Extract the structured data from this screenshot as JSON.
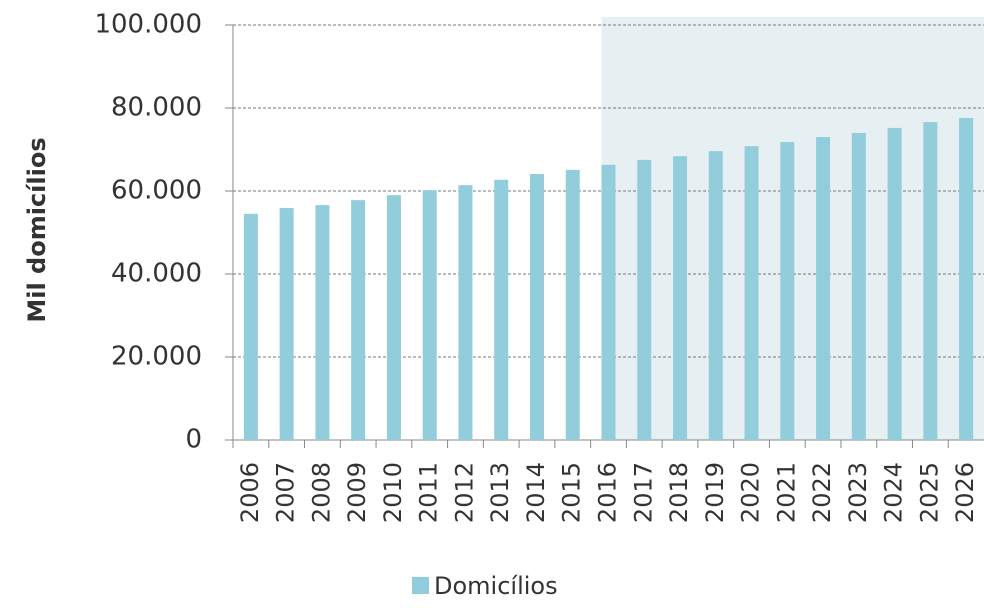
{
  "chart_data": {
    "type": "bar",
    "y_label": "Mil domicílios",
    "categories": [
      "2006",
      "2007",
      "2008",
      "2009",
      "2010",
      "2011",
      "2012",
      "2013",
      "2014",
      "2015",
      "2016",
      "2017",
      "2018",
      "2019",
      "2020",
      "2021",
      "2022",
      "2023",
      "2024",
      "2025",
      "2026"
    ],
    "series": [
      {
        "name": "Domicílios",
        "color": "#92cddc",
        "values": [
          54500,
          55900,
          56600,
          57800,
          59000,
          60200,
          61400,
          62700,
          64100,
          65100,
          66300,
          67500,
          68400,
          69600,
          70800,
          71800,
          73000,
          74000,
          75200,
          76600,
          77600
        ]
      }
    ],
    "ylim": [
      0,
      100000
    ],
    "yticks": [
      0,
      {
        "value": 20000,
        "label": "20.000"
      },
      {
        "value": 40000,
        "label": "40.000"
      },
      {
        "value": 60000,
        "label": "60.000"
      },
      {
        "value": 80000,
        "label": "80.000"
      },
      {
        "value": 100000,
        "label": "100.000"
      }
    ],
    "grid": true,
    "shaded_from": "2016",
    "shade_color": "#e6eff2",
    "legend": "bottom"
  }
}
